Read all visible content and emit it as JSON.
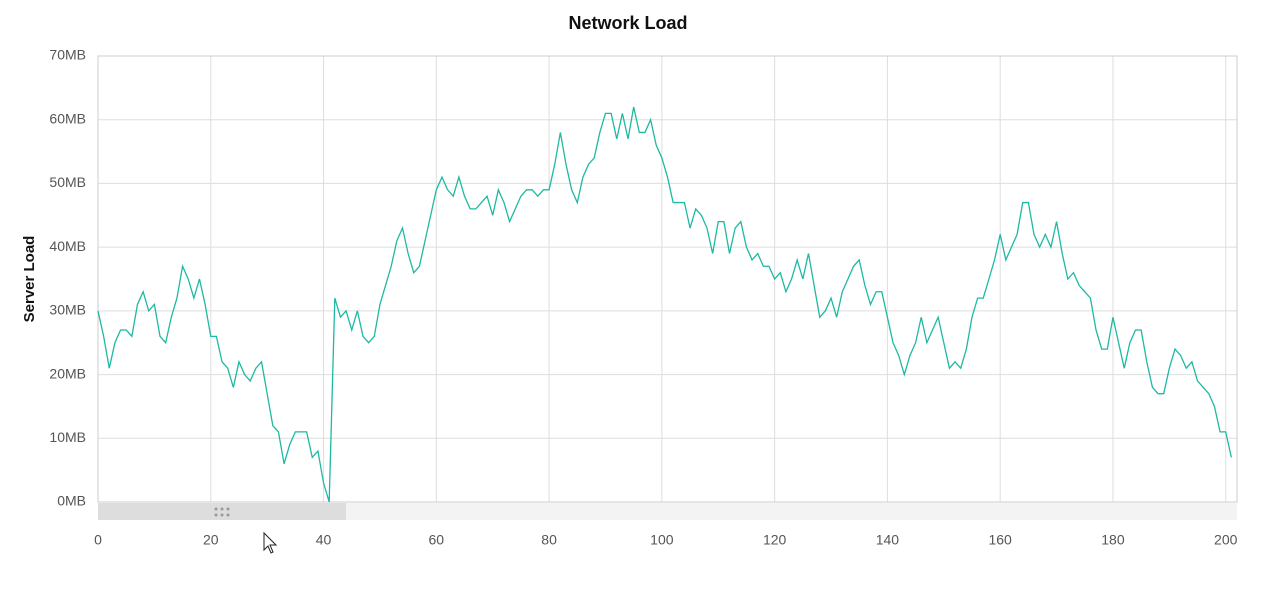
{
  "chart_data": {
    "type": "line",
    "title": "Network Load",
    "y_label": "Server Load",
    "x": [
      0,
      1,
      2,
      3,
      4,
      5,
      6,
      7,
      8,
      9,
      10,
      11,
      12,
      13,
      14,
      15,
      16,
      17,
      18,
      19,
      20,
      21,
      22,
      23,
      24,
      25,
      26,
      27,
      28,
      29,
      30,
      31,
      32,
      33,
      34,
      35,
      36,
      37,
      38,
      39,
      40,
      41,
      42,
      43,
      44,
      45,
      46,
      47,
      48,
      49,
      50,
      51,
      52,
      53,
      54,
      55,
      56,
      57,
      58,
      59,
      60,
      61,
      62,
      63,
      64,
      65,
      66,
      67,
      68,
      69,
      70,
      71,
      72,
      73,
      74,
      75,
      76,
      77,
      78,
      79,
      80,
      81,
      82,
      83,
      84,
      85,
      86,
      87,
      88,
      89,
      90,
      91,
      92,
      93,
      94,
      95,
      96,
      97,
      98,
      99,
      100,
      101,
      102,
      103,
      104,
      105,
      106,
      107,
      108,
      109,
      110,
      111,
      112,
      113,
      114,
      115,
      116,
      117,
      118,
      119,
      120,
      121,
      122,
      123,
      124,
      125,
      126,
      127,
      128,
      129,
      130,
      131,
      132,
      133,
      134,
      135,
      136,
      137,
      138,
      139,
      140,
      141,
      142,
      143,
      144,
      145,
      146,
      147,
      148,
      149,
      150,
      151,
      152,
      153,
      154,
      155,
      156,
      157,
      158,
      159,
      160,
      161,
      162,
      163,
      164,
      165,
      166,
      167,
      168,
      169,
      170,
      171,
      172,
      173,
      174,
      175,
      176,
      177,
      178,
      179,
      180,
      181,
      182,
      183,
      184,
      185,
      186,
      187,
      188,
      189,
      190,
      191,
      192,
      193,
      194,
      195,
      196,
      197,
      198,
      199,
      200,
      201
    ],
    "series": [
      {
        "color": "#1db9a2",
        "values": [
          30,
          26,
          21,
          25,
          27,
          27,
          26,
          31,
          33,
          30,
          31,
          26,
          25,
          29,
          32,
          37,
          35,
          32,
          35,
          31,
          26,
          26,
          22,
          21,
          18,
          22,
          20,
          19,
          21,
          22,
          17,
          12,
          11,
          6,
          9,
          11,
          11,
          11,
          7,
          8,
          3,
          0,
          32,
          29,
          30,
          27,
          30,
          26,
          25,
          26,
          31,
          34,
          37,
          41,
          43,
          39,
          36,
          37,
          41,
          45,
          49,
          51,
          49,
          48,
          51,
          48,
          46,
          46,
          47,
          48,
          45,
          49,
          47,
          44,
          46,
          48,
          49,
          49,
          48,
          49,
          49,
          53,
          58,
          53,
          49,
          47,
          51,
          53,
          54,
          58,
          61,
          61,
          57,
          61,
          57,
          62,
          58,
          58,
          60,
          56,
          54,
          51,
          47,
          47,
          47,
          43,
          46,
          45,
          43,
          39,
          44,
          44,
          39,
          43,
          44,
          40,
          38,
          39,
          37,
          37,
          35,
          36,
          33,
          35,
          38,
          35,
          39,
          34,
          29,
          30,
          32,
          29,
          33,
          35,
          37,
          38,
          34,
          31,
          33,
          33,
          29,
          25,
          23,
          20,
          23,
          25,
          29,
          25,
          27,
          29,
          25,
          21,
          22,
          21,
          24,
          29,
          32,
          32,
          35,
          38,
          42,
          38,
          40,
          42,
          47,
          47,
          42,
          40,
          42,
          40,
          44,
          39,
          35,
          36,
          34,
          33,
          32,
          27,
          24,
          24,
          29,
          25,
          21,
          25,
          27,
          27,
          22,
          18,
          17,
          17,
          21,
          24,
          23,
          21,
          22,
          19,
          18,
          17,
          15,
          11,
          11,
          7
        ]
      }
    ],
    "xlim": [
      0,
      202
    ],
    "ylim": [
      0,
      70
    ],
    "xticks": [
      0,
      20,
      40,
      60,
      80,
      100,
      120,
      140,
      160,
      180,
      200
    ],
    "yticks": [
      {
        "value": 0,
        "label": "0MB"
      },
      {
        "value": 10,
        "label": "10MB"
      },
      {
        "value": 20,
        "label": "20MB"
      },
      {
        "value": 30,
        "label": "30MB"
      },
      {
        "value": 40,
        "label": "40MB"
      },
      {
        "value": 50,
        "label": "50MB"
      },
      {
        "value": 60,
        "label": "60MB"
      },
      {
        "value": 70,
        "label": "70MB"
      }
    ],
    "grid": true
  }
}
